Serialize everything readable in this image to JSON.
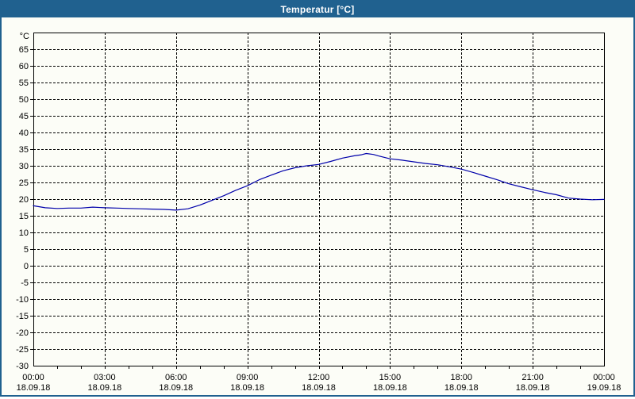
{
  "window": {
    "title": "Temperatur [°C]"
  },
  "colors": {
    "titlebar_bg": "#20618F",
    "titlebar_text": "#FFFFFF",
    "window_bg": "#FCFDF7",
    "grid": "#000000",
    "axis": "#000000",
    "label_text": "#000000",
    "series_line": "#0000AA"
  },
  "chart_data": {
    "type": "line",
    "title": "Temperatur [°C]",
    "ylabel": "°C",
    "ylim": [
      -30,
      70
    ],
    "ytick_step": 5,
    "ytick_label_min": -30,
    "ytick_label_max": 65,
    "xlim_hours": [
      0,
      24
    ],
    "x_major_step_hours": 3,
    "x_minor_step_hours": 1,
    "grid": "dashed",
    "legend": "none",
    "x_axis_labels": [
      {
        "time": "00:00",
        "date": "18.09.18"
      },
      {
        "time": "03:00",
        "date": "18.09.18"
      },
      {
        "time": "06:00",
        "date": "18.09.18"
      },
      {
        "time": "09:00",
        "date": "18.09.18"
      },
      {
        "time": "12:00",
        "date": "18.09.18"
      },
      {
        "time": "15:00",
        "date": "18.09.18"
      },
      {
        "time": "18:00",
        "date": "18.09.18"
      },
      {
        "time": "21:00",
        "date": "18.09.18"
      },
      {
        "time": "00:00",
        "date": "19.09.18"
      }
    ],
    "series": [
      {
        "name": "Temperatur",
        "color": "#0000AA",
        "points": [
          [
            0.0,
            18.0
          ],
          [
            0.5,
            17.4
          ],
          [
            1.0,
            17.2
          ],
          [
            1.5,
            17.3
          ],
          [
            2.0,
            17.3
          ],
          [
            2.5,
            17.6
          ],
          [
            3.0,
            17.4
          ],
          [
            3.5,
            17.3
          ],
          [
            4.0,
            17.2
          ],
          [
            4.5,
            17.1
          ],
          [
            5.0,
            17.0
          ],
          [
            5.5,
            16.9
          ],
          [
            6.0,
            16.7
          ],
          [
            6.5,
            17.1
          ],
          [
            7.0,
            18.2
          ],
          [
            7.5,
            19.6
          ],
          [
            8.0,
            21.0
          ],
          [
            8.5,
            22.6
          ],
          [
            9.0,
            24.0
          ],
          [
            9.5,
            25.8
          ],
          [
            10.0,
            27.2
          ],
          [
            10.5,
            28.5
          ],
          [
            11.0,
            29.4
          ],
          [
            11.5,
            30.0
          ],
          [
            12.0,
            30.4
          ],
          [
            12.5,
            31.3
          ],
          [
            13.0,
            32.3
          ],
          [
            13.5,
            33.0
          ],
          [
            13.8,
            33.3
          ],
          [
            14.0,
            33.7
          ],
          [
            14.3,
            33.4
          ],
          [
            14.5,
            33.0
          ],
          [
            15.0,
            32.1
          ],
          [
            15.5,
            31.7
          ],
          [
            16.0,
            31.2
          ],
          [
            16.5,
            30.7
          ],
          [
            17.0,
            30.3
          ],
          [
            17.5,
            29.7
          ],
          [
            18.0,
            29.0
          ],
          [
            18.5,
            28.0
          ],
          [
            19.0,
            26.9
          ],
          [
            19.5,
            25.8
          ],
          [
            20.0,
            24.6
          ],
          [
            20.5,
            23.7
          ],
          [
            21.0,
            22.8
          ],
          [
            21.5,
            22.0
          ],
          [
            22.0,
            21.3
          ],
          [
            22.5,
            20.3
          ],
          [
            23.0,
            20.0
          ],
          [
            23.5,
            19.8
          ],
          [
            24.0,
            19.9
          ]
        ]
      }
    ]
  }
}
